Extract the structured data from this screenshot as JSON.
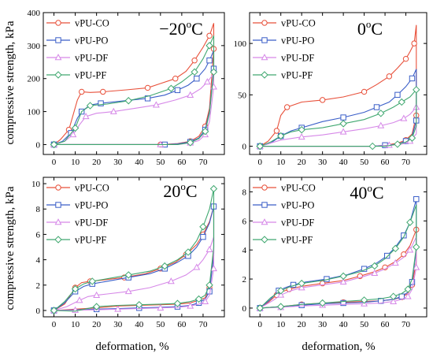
{
  "chart_data": [
    {
      "type": "line",
      "title": "−20°C",
      "title_parts": [
        "−20",
        "o",
        "C"
      ],
      "xlim": [
        -5,
        80
      ],
      "ylim": [
        -30,
        400
      ],
      "xticks": [
        0,
        10,
        20,
        30,
        40,
        50,
        60,
        70
      ],
      "yticks": [
        0,
        100,
        200,
        300,
        400
      ],
      "legend_position": "top-left",
      "series": [
        {
          "name": "vPU-CO",
          "color": "#e8503a",
          "marker": "circle",
          "x": [
            0,
            3,
            7,
            11,
            13,
            17,
            23,
            34,
            44,
            50,
            57,
            62,
            66,
            70,
            73,
            75,
            75,
            73,
            71,
            68,
            64,
            58,
            50,
            0
          ],
          "y": [
            0,
            15,
            45,
            135,
            160,
            158,
            160,
            166,
            172,
            185,
            200,
            222,
            255,
            295,
            330,
            368,
            290,
            110,
            55,
            25,
            10,
            3,
            0,
            0
          ]
        },
        {
          "name": "vPU-PO",
          "color": "#3a5ec8",
          "marker": "square",
          "x": [
            0,
            4,
            8,
            11,
            13,
            17,
            22,
            32,
            44,
            52,
            58,
            63,
            67,
            71,
            73,
            75,
            75,
            73,
            71,
            68,
            64,
            58,
            52,
            0
          ],
          "y": [
            0,
            10,
            35,
            80,
            100,
            120,
            125,
            132,
            140,
            150,
            165,
            180,
            200,
            230,
            255,
            285,
            230,
            100,
            45,
            20,
            8,
            2,
            0,
            0
          ]
        },
        {
          "name": "vPU-DF",
          "color": "#d688e8",
          "marker": "triangle",
          "x": [
            0,
            5,
            9,
            12,
            15,
            20,
            28,
            38,
            48,
            57,
            64,
            69,
            72,
            75,
            75,
            73,
            71,
            68,
            64,
            58,
            50,
            0
          ],
          "y": [
            0,
            10,
            30,
            60,
            85,
            95,
            100,
            110,
            120,
            135,
            150,
            170,
            190,
            215,
            175,
            70,
            30,
            12,
            5,
            0,
            0,
            0
          ]
        },
        {
          "name": "vPU-PF",
          "color": "#40a870",
          "marker": "diamond",
          "x": [
            0,
            5,
            10,
            13,
            17,
            25,
            35,
            45,
            55,
            60,
            66,
            70,
            73,
            75,
            75,
            73,
            71,
            68,
            64,
            58,
            0
          ],
          "y": [
            0,
            10,
            50,
            100,
            118,
            123,
            133,
            148,
            170,
            190,
            220,
            260,
            300,
            330,
            220,
            95,
            40,
            18,
            6,
            0,
            0
          ]
        }
      ]
    },
    {
      "type": "line",
      "title": "0°C",
      "title_parts": [
        "0",
        "o",
        "C"
      ],
      "xlim": [
        -5,
        80
      ],
      "ylim": [
        -8,
        130
      ],
      "xticks": [
        0,
        10,
        20,
        30,
        40,
        50,
        60,
        70
      ],
      "yticks": [
        0,
        50,
        100
      ],
      "legend_position": "top-left",
      "series": [
        {
          "name": "vPU-CO",
          "color": "#e8503a",
          "marker": "circle",
          "x": [
            0,
            4,
            8,
            10,
            13,
            20,
            30,
            40,
            50,
            56,
            62,
            66,
            70,
            72,
            74,
            75,
            75,
            73,
            70,
            66,
            60,
            54,
            0
          ],
          "y": [
            0,
            5,
            15,
            30,
            38,
            43,
            45,
            48,
            53,
            60,
            68,
            76,
            85,
            92,
            100,
            118,
            30,
            12,
            6,
            3,
            1,
            0,
            0
          ]
        },
        {
          "name": "vPU-PO",
          "color": "#3a5ec8",
          "marker": "square",
          "x": [
            0,
            5,
            10,
            15,
            20,
            30,
            40,
            50,
            56,
            62,
            66,
            70,
            73,
            75,
            75,
            73,
            70,
            66,
            60,
            54,
            0
          ],
          "y": [
            0,
            3,
            10,
            15,
            18,
            24,
            28,
            33,
            38,
            43,
            50,
            58,
            66,
            75,
            25,
            10,
            5,
            2,
            1,
            0,
            0
          ]
        },
        {
          "name": "vPU-DF",
          "color": "#d688e8",
          "marker": "triangle",
          "x": [
            0,
            10,
            20,
            30,
            40,
            50,
            58,
            64,
            69,
            72,
            75,
            75,
            72,
            68,
            62,
            55,
            0
          ],
          "y": [
            0,
            6,
            9,
            11,
            14,
            17,
            20,
            23,
            27,
            31,
            38,
            12,
            5,
            2,
            1,
            0,
            0
          ]
        },
        {
          "name": "vPU-PF",
          "color": "#40a870",
          "marker": "diamond",
          "x": [
            0,
            5,
            10,
            15,
            20,
            30,
            40,
            50,
            58,
            64,
            68,
            72,
            75,
            75,
            73,
            70,
            66,
            60,
            54,
            0
          ],
          "y": [
            0,
            4,
            10,
            14,
            16,
            18,
            22,
            26,
            32,
            38,
            43,
            48,
            55,
            20,
            8,
            4,
            2,
            0,
            0,
            0
          ]
        }
      ]
    },
    {
      "type": "line",
      "title": "20°C",
      "title_parts": [
        "20",
        "o",
        "C"
      ],
      "xlim": [
        -5,
        80
      ],
      "ylim": [
        -0.5,
        10.5
      ],
      "xticks": [
        0,
        10,
        20,
        30,
        40,
        50,
        60,
        70
      ],
      "yticks": [
        0,
        2,
        4,
        6,
        8,
        10
      ],
      "legend_position": "top-left",
      "series": [
        {
          "name": "vPU-CO",
          "color": "#e8503a",
          "marker": "circle",
          "x": [
            0,
            5,
            10,
            13,
            17,
            23,
            33,
            43,
            50,
            57,
            62,
            67,
            70,
            73,
            75,
            75,
            73,
            71,
            68,
            64,
            58,
            50,
            40,
            30,
            20,
            10,
            0
          ],
          "y": [
            0,
            0.5,
            1.8,
            2.2,
            2.3,
            2.4,
            2.6,
            2.9,
            3.3,
            3.8,
            4.4,
            5.2,
            6.0,
            7.0,
            8.2,
            4.5,
            1.8,
            1.0,
            0.8,
            0.6,
            0.5,
            0.45,
            0.4,
            0.35,
            0.2,
            0.1,
            0
          ]
        },
        {
          "name": "vPU-PO",
          "color": "#3a5ec8",
          "marker": "square",
          "x": [
            0,
            5,
            10,
            14,
            18,
            25,
            35,
            45,
            52,
            58,
            63,
            67,
            70,
            73,
            75,
            75,
            73,
            71,
            68,
            64,
            58,
            50,
            40,
            30,
            20,
            10,
            0
          ],
          "y": [
            0,
            0.6,
            1.5,
            1.9,
            2.1,
            2.3,
            2.6,
            2.9,
            3.3,
            3.8,
            4.3,
            5.0,
            5.8,
            6.9,
            8.2,
            4.3,
            1.5,
            0.9,
            0.6,
            0.4,
            0.3,
            0.25,
            0.2,
            0.15,
            0.1,
            0.05,
            0
          ]
        },
        {
          "name": "vPU-DF",
          "color": "#d688e8",
          "marker": "triangle",
          "x": [
            0,
            6,
            12,
            16,
            20,
            25,
            35,
            45,
            55,
            62,
            67,
            70,
            73,
            75,
            75,
            73,
            71,
            68,
            64,
            58,
            50,
            40,
            30,
            20,
            10,
            0
          ],
          "y": [
            0,
            0.3,
            0.8,
            1.1,
            1.2,
            1.3,
            1.5,
            1.8,
            2.3,
            2.8,
            3.4,
            4.0,
            4.8,
            5.8,
            3.3,
            1.2,
            0.7,
            0.5,
            0.35,
            0.25,
            0.2,
            0.15,
            0.1,
            0.05,
            0.02,
            0
          ]
        },
        {
          "name": "vPU-PF",
          "color": "#40a870",
          "marker": "diamond",
          "x": [
            0,
            5,
            10,
            14,
            18,
            25,
            35,
            45,
            52,
            58,
            63,
            67,
            70,
            73,
            75,
            75,
            73,
            71,
            68,
            64,
            58,
            50,
            40,
            30,
            20,
            10,
            0
          ],
          "y": [
            0,
            0.7,
            1.7,
            2.1,
            2.3,
            2.5,
            2.8,
            3.1,
            3.5,
            4.0,
            4.6,
            5.5,
            6.6,
            8.0,
            9.6,
            5.0,
            2.0,
            1.2,
            0.9,
            0.7,
            0.55,
            0.5,
            0.45,
            0.4,
            0.3,
            -0.05,
            0
          ]
        }
      ]
    },
    {
      "type": "line",
      "title": "40°C",
      "title_parts": [
        "40",
        "o",
        "C"
      ],
      "xlim": [
        -5,
        80
      ],
      "ylim": [
        -0.6,
        9
      ],
      "xticks": [
        0,
        10,
        20,
        30,
        40,
        50,
        60,
        70
      ],
      "yticks": [
        0,
        2,
        4,
        6,
        8
      ],
      "legend_position": "top-left",
      "series": [
        {
          "name": "vPU-CO",
          "color": "#e8503a",
          "marker": "circle",
          "x": [
            0,
            4,
            8,
            10,
            14,
            20,
            30,
            40,
            48,
            55,
            60,
            65,
            69,
            72,
            75,
            75,
            73,
            71,
            68,
            64,
            58,
            50,
            40,
            30,
            20,
            10,
            0
          ],
          "y": [
            0,
            0.4,
            0.9,
            1.1,
            1.3,
            1.5,
            1.7,
            1.9,
            2.2,
            2.5,
            2.8,
            3.2,
            3.7,
            4.3,
            5.4,
            3.2,
            1.6,
            1.0,
            0.75,
            0.6,
            0.5,
            0.45,
            0.4,
            0.35,
            0.25,
            0.1,
            0
          ]
        },
        {
          "name": "vPU-PO",
          "color": "#3a5ec8",
          "marker": "square",
          "x": [
            0,
            5,
            9,
            12,
            16,
            22,
            32,
            42,
            50,
            56,
            61,
            65,
            69,
            72,
            75,
            75,
            73,
            71,
            68,
            64,
            58,
            50,
            40,
            30,
            20,
            10,
            0
          ],
          "y": [
            0,
            0.6,
            1.2,
            1.4,
            1.6,
            1.8,
            2.0,
            2.3,
            2.7,
            3.1,
            3.6,
            4.2,
            5.0,
            5.9,
            7.5,
            4.0,
            1.8,
            1.1,
            0.8,
            0.6,
            0.5,
            0.4,
            0.35,
            0.3,
            0.2,
            0.1,
            0
          ]
        },
        {
          "name": "vPU-DF",
          "color": "#d688e8",
          "marker": "triangle",
          "x": [
            0,
            6,
            10,
            15,
            20,
            30,
            40,
            48,
            55,
            60,
            65,
            69,
            72,
            75,
            75,
            73,
            71,
            68,
            64,
            58,
            50,
            40,
            30,
            20,
            10,
            0
          ],
          "y": [
            0,
            0.5,
            0.9,
            1.2,
            1.4,
            1.6,
            1.8,
            2.1,
            2.4,
            2.7,
            3.1,
            3.5,
            4.0,
            4.9,
            2.8,
            1.3,
            0.8,
            0.6,
            0.45,
            0.35,
            0.3,
            0.25,
            0.2,
            0.15,
            0.05,
            0
          ]
        },
        {
          "name": "vPU-PF",
          "color": "#40a870",
          "marker": "diamond",
          "x": [
            0,
            5,
            10,
            15,
            20,
            30,
            40,
            48,
            55,
            60,
            65,
            69,
            72,
            75,
            75,
            73,
            71,
            68,
            64,
            58,
            50,
            40,
            30,
            20,
            10,
            0
          ],
          "y": [
            0,
            0.7,
            1.2,
            1.5,
            1.7,
            1.9,
            2.2,
            2.5,
            2.9,
            3.4,
            4.1,
            4.9,
            5.9,
            7.1,
            4.2,
            2.0,
            1.3,
            1.0,
            0.8,
            0.65,
            0.55,
            0.45,
            0.35,
            0.25,
            0.1,
            0
          ]
        }
      ]
    }
  ],
  "axes": {
    "ylabel": "compressive strength, kPa",
    "xlabel": "deformation, %"
  }
}
